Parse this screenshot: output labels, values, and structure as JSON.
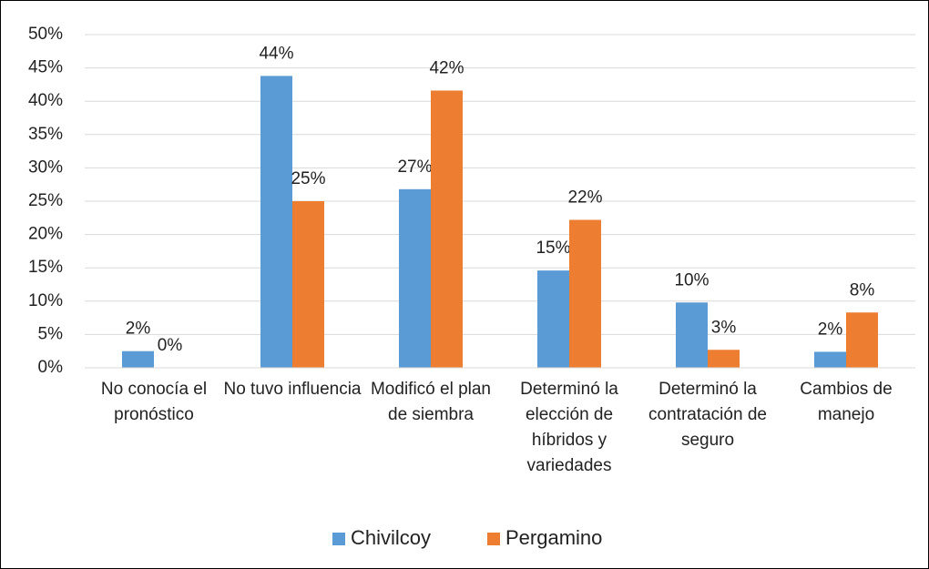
{
  "chart_data": {
    "type": "bar",
    "categories": [
      "No conocía el pronóstico",
      "No tuvo influencia",
      "Modificó el plan de siembra",
      "Determinó la elección de híbridos y variedades",
      "Determinó la contratación de seguro",
      "Cambios de manejo"
    ],
    "series": [
      {
        "name": "Chivilcoy",
        "color": "#5b9bd5",
        "values": [
          2.5,
          43.8,
          26.8,
          14.6,
          9.8,
          2.4
        ],
        "value_labels": [
          "2%",
          "44%",
          "27%",
          "15%",
          "10%",
          "2%"
        ]
      },
      {
        "name": "Pergamino",
        "color": "#ed7d31",
        "values": [
          0,
          25,
          41.6,
          22.2,
          2.7,
          8.3
        ],
        "value_labels": [
          "0%",
          "25%",
          "42%",
          "22%",
          "3%",
          "8%"
        ]
      }
    ],
    "ylim": [
      0,
      50
    ],
    "yticks": [
      {
        "value": 0,
        "label": "0%"
      },
      {
        "value": 5,
        "label": "5%"
      },
      {
        "value": 10,
        "label": "10%"
      },
      {
        "value": 15,
        "label": "15%"
      },
      {
        "value": 20,
        "label": "20%"
      },
      {
        "value": 25,
        "label": "25%"
      },
      {
        "value": 30,
        "label": "30%"
      },
      {
        "value": 35,
        "label": "35%"
      },
      {
        "value": 40,
        "label": "40%"
      },
      {
        "value": 45,
        "label": "45%"
      },
      {
        "value": 50,
        "label": "50%"
      }
    ],
    "grid": true,
    "legend": "bottom"
  }
}
